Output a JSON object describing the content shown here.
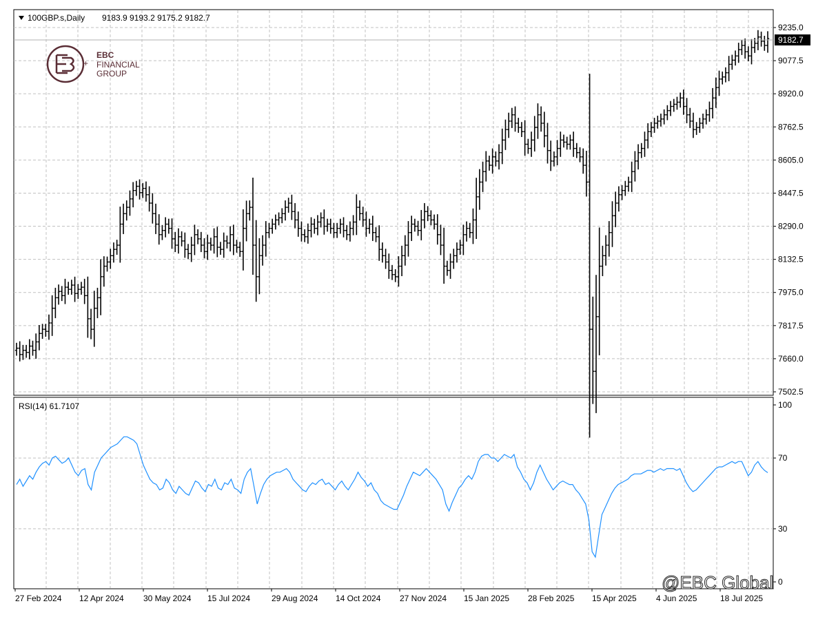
{
  "header": {
    "symbol_line": "100GBP.s,Daily",
    "ohlc": "9183.9 9193.2 9175.2 9182.7"
  },
  "price_badge": "9182.7",
  "logo": {
    "line1": "EBC",
    "line2": "FINANCIAL",
    "line3": "GROUP"
  },
  "watermark": "@EBC Global",
  "rsi": {
    "label": "RSI(14) 61.7107",
    "levels": [
      "100",
      "70",
      "30",
      "0"
    ]
  },
  "colors": {
    "grid": "#c0c0c0",
    "bars": "#000000",
    "rsi_line": "#1e90ff",
    "logo": "#5a2d35"
  },
  "chart_data": [
    {
      "type": "ohlc",
      "title": "100GBP.s,Daily",
      "ylim": [
        7502.5,
        9235.0
      ],
      "y_ticks": [
        "9235.0",
        "9077.5",
        "8920.0",
        "8762.5",
        "8605.0",
        "8447.5",
        "8290.0",
        "8132.5",
        "7975.0",
        "7817.5",
        "7660.0",
        "7502.5"
      ],
      "x_ticks": [
        "27 Feb 2024",
        "12 Apr 2024",
        "30 May 2024",
        "15 Jul 2024",
        "29 Aug 2024",
        "14 Oct 2024",
        "27 Nov 2024",
        "15 Jan 2025",
        "28 Feb 2025",
        "15 Apr 2025",
        "4 Jun 2025",
        "18 Jul 2025"
      ],
      "last_close": 9182.7,
      "series": [
        {
          "close": [
            7710,
            7680,
            7700,
            7690,
            7720,
            7700,
            7740,
            7780,
            7800,
            7790,
            7830,
            7900,
            7950,
            7980,
            7960,
            8000,
            7990,
            8010,
            7970,
            7990,
            8000,
            7960,
            7850,
            7800,
            7900,
            7950,
            8050,
            8100,
            8120,
            8150,
            8180,
            8200,
            8300,
            8350,
            8380,
            8420,
            8460,
            8480,
            8450,
            8470,
            8440,
            8400,
            8350,
            8300,
            8250,
            8270,
            8300,
            8280,
            8230,
            8200,
            8240,
            8220,
            8180,
            8160,
            8200,
            8250,
            8230,
            8200,
            8170,
            8210,
            8200,
            8240,
            8190,
            8180,
            8220,
            8210,
            8250,
            8200,
            8190,
            8170,
            8280,
            8350,
            8380,
            8200,
            8050,
            8150,
            8200,
            8260,
            8280,
            8300,
            8320,
            8330,
            8350,
            8380,
            8400,
            8360,
            8320,
            8280,
            8250,
            8240,
            8270,
            8300,
            8280,
            8310,
            8330,
            8290,
            8300,
            8280,
            8260,
            8280,
            8300,
            8270,
            8250,
            8280,
            8310,
            8380,
            8350,
            8320,
            8280,
            8300,
            8260,
            8240,
            8180,
            8150,
            8120,
            8080,
            8060,
            8050,
            8100,
            8150,
            8200,
            8260,
            8300,
            8290,
            8270,
            8320,
            8360,
            8340,
            8320,
            8300,
            8250,
            8200,
            8100,
            8080,
            8120,
            8150,
            8180,
            8200,
            8250,
            8280,
            8260,
            8320,
            8430,
            8500,
            8550,
            8600,
            8580,
            8620,
            8600,
            8640,
            8700,
            8750,
            8790,
            8820,
            8780,
            8760,
            8740,
            8680,
            8660,
            8700,
            8760,
            8820,
            8780,
            8720,
            8650,
            8600,
            8620,
            8660,
            8700,
            8690,
            8680,
            8700,
            8660,
            8640,
            8620,
            8580,
            8500,
            7800,
            7600,
            7860,
            8100,
            8150,
            8200,
            8260,
            8340,
            8400,
            8440,
            8460,
            8480,
            8500,
            8550,
            8600,
            8640,
            8660,
            8700,
            8740,
            8760,
            8780,
            8790,
            8800,
            8820,
            8840,
            8860,
            8870,
            8880,
            8900,
            8860,
            8820,
            8790,
            8750,
            8760,
            8780,
            8800,
            8820,
            8850,
            8900,
            8950,
            8990,
            9000,
            9020,
            9060,
            9080,
            9100,
            9130,
            9150,
            9120,
            9100,
            9140,
            9160,
            9190,
            9170,
            9150,
            9182.7
          ]
        }
      ]
    },
    {
      "type": "line",
      "title": "RSI(14) 61.7107",
      "ylim": [
        0,
        100
      ],
      "y_ticks": [
        "100",
        "70",
        "30",
        "0"
      ],
      "series": [
        {
          "name": "RSI(14)",
          "values": [
            55,
            58,
            54,
            57,
            60,
            58,
            62,
            65,
            67,
            68,
            66,
            70,
            71,
            69,
            67,
            68,
            70,
            66,
            62,
            60,
            63,
            64,
            55,
            52,
            62,
            66,
            70,
            72,
            74,
            76,
            77,
            78,
            80,
            82,
            82,
            81,
            80,
            78,
            72,
            66,
            62,
            58,
            56,
            55,
            52,
            53,
            58,
            56,
            52,
            50,
            54,
            52,
            50,
            49,
            53,
            57,
            56,
            53,
            51,
            55,
            54,
            58,
            53,
            52,
            56,
            55,
            58,
            53,
            52,
            50,
            58,
            62,
            64,
            54,
            44,
            50,
            55,
            58,
            60,
            61,
            62,
            62,
            63,
            64,
            62,
            58,
            56,
            54,
            52,
            51,
            54,
            56,
            55,
            57,
            58,
            55,
            56,
            54,
            52,
            55,
            57,
            54,
            52,
            55,
            58,
            62,
            59,
            57,
            54,
            56,
            52,
            50,
            46,
            44,
            43,
            42,
            41,
            41,
            45,
            49,
            54,
            58,
            62,
            61,
            60,
            62,
            64,
            62,
            60,
            58,
            55,
            52,
            44,
            40,
            45,
            49,
            53,
            55,
            58,
            60,
            58,
            62,
            68,
            71,
            72,
            72,
            70,
            70,
            68,
            70,
            72,
            71,
            70,
            72,
            65,
            62,
            58,
            56,
            52,
            56,
            62,
            66,
            62,
            58,
            55,
            52,
            54,
            56,
            57,
            56,
            55,
            55,
            52,
            50,
            47,
            44,
            35,
            17,
            14,
            26,
            38,
            42,
            46,
            50,
            53,
            55,
            56,
            57,
            58,
            60,
            61,
            61,
            61,
            62,
            63,
            63,
            62,
            63,
            64,
            63,
            64,
            64,
            64,
            63,
            64,
            60,
            56,
            53,
            51,
            52,
            54,
            56,
            58,
            60,
            62,
            64,
            65,
            65,
            66,
            67,
            68,
            67,
            68,
            68,
            64,
            60,
            62,
            66,
            68,
            65,
            63,
            61.7
          ]
        }
      ]
    }
  ]
}
